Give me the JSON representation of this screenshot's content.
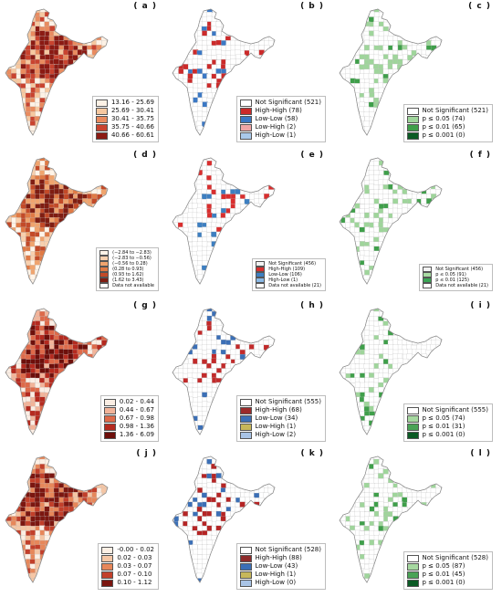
{
  "panels": [
    {
      "label": "( a )",
      "kind": "choropleth",
      "palette": [
        "#fdf2e6",
        "#f6c8a0",
        "#e98b5f",
        "#c9432f",
        "#8b1a13"
      ],
      "legend": [
        "13.16 - 25.69",
        "25.69 - 30.41",
        "30.41 - 35.75",
        "35.75 - 40.66",
        "40.66 - 60.61"
      ]
    },
    {
      "label": "( b )",
      "kind": "lisa",
      "hh": "#cc2a2a",
      "ll": "#3b78c4",
      "legend": [
        {
          "text": "Not Significant (521)",
          "color": "#ffffff"
        },
        {
          "text": "High-High (78)",
          "color": "#cc2a2a"
        },
        {
          "text": "Low-Low (58)",
          "color": "#3b78c4"
        },
        {
          "text": "Low-High (2)",
          "color": "#f0a6a6"
        },
        {
          "text": "High-Low (1)",
          "color": "#a9c9ea"
        }
      ]
    },
    {
      "label": "( c )",
      "kind": "signif",
      "legend": [
        {
          "text": "Not Significant (521)",
          "color": "#ffffff"
        },
        {
          "text": "p ≤ 0.05 (74)",
          "color": "#9fd59b"
        },
        {
          "text": "p ≤ 0.01 (65)",
          "color": "#3f9f4a"
        },
        {
          "text": "p ≤ 0.001 (0)",
          "color": "#0b5a24"
        }
      ]
    },
    {
      "label": "( d )",
      "kind": "choropleth",
      "small": true,
      "palette": [
        "#fff4e8",
        "#f8d0ae",
        "#f0a46e",
        "#e07a45",
        "#c34a28",
        "#7f1d12"
      ],
      "legend": [
        "(−2.84 to −2.83)",
        "(−2.83 to −0.56)",
        "(−0.56 to 0.28)",
        "(0.28 to 0.93)",
        "(0.93 to 1.62)",
        "(1.62 to 3.43)",
        "Data not available"
      ]
    },
    {
      "label": "( e )",
      "kind": "lisa",
      "small": true,
      "hh": "#d92e2e",
      "ll": "#3d7fc1",
      "legend": [
        {
          "text": "Not Significant (456)",
          "color": "#f2f2f2"
        },
        {
          "text": "High-High (109)",
          "color": "#d92e2e"
        },
        {
          "text": "Low-Low (106)",
          "color": "#3d7fc1"
        },
        {
          "text": "High-Low (1)",
          "color": "#8ab9e6"
        },
        {
          "text": "Data not available (21)",
          "color": "#ffffff"
        }
      ]
    },
    {
      "label": "( f )",
      "kind": "signif",
      "small": true,
      "legend": [
        {
          "text": "Not Significant (456)",
          "color": "#f2f2f2"
        },
        {
          "text": "p ≤ 0.05 (91)",
          "color": "#a9dba3"
        },
        {
          "text": "p ≤ 0.01 (125)",
          "color": "#3aa655"
        },
        {
          "text": "Data not available (21)",
          "color": "#ffffff"
        }
      ]
    },
    {
      "label": "( g )",
      "kind": "choropleth",
      "palette": [
        "#fbeee4",
        "#f2b49a",
        "#de6a4a",
        "#b52a1f",
        "#6d0f0b"
      ],
      "legend": [
        "0.02 - 0.44",
        "0.44 - 0.67",
        "0.67 - 0.98",
        "0.98 - 1.36",
        "1.36 - 6.09"
      ]
    },
    {
      "label": "( h )",
      "kind": "lisa",
      "hh": "#c22a2a",
      "ll": "#3b6fb6",
      "legend": [
        {
          "text": "Not Significant (555)",
          "color": "#ffffff"
        },
        {
          "text": "High-High (68)",
          "color": "#9b2a2a"
        },
        {
          "text": "Low-Low (34)",
          "color": "#3b6fb6"
        },
        {
          "text": "Low-High (1)",
          "color": "#c7b75a"
        },
        {
          "text": "High-Low (2)",
          "color": "#a9c4e6"
        }
      ]
    },
    {
      "label": "( i )",
      "kind": "signif",
      "legend": [
        {
          "text": "Not Significant (555)",
          "color": "#ffffff"
        },
        {
          "text": "p ≤ 0.05 (74)",
          "color": "#a6d8a0"
        },
        {
          "text": "p ≤ 0.01 (31)",
          "color": "#4aa356"
        },
        {
          "text": "p ≤ 0.001 (0)",
          "color": "#0b5a24"
        }
      ]
    },
    {
      "label": "( j )",
      "kind": "choropleth",
      "palette": [
        "#fcefe4",
        "#f5c6a5",
        "#e7875a",
        "#c23f2a",
        "#7b1610"
      ],
      "legend": [
        "-0.00 - 0.02",
        "0.02 - 0.03",
        "0.03 - 0.07",
        "0.07 - 0.10",
        "0.10 - 1.12"
      ]
    },
    {
      "label": "( k )",
      "kind": "lisa",
      "hh": "#b52525",
      "ll": "#3b6fb6",
      "legend": [
        {
          "text": "Not Significant (528)",
          "color": "#ffffff"
        },
        {
          "text": "High-High (88)",
          "color": "#8e2b2b"
        },
        {
          "text": "Low-Low (43)",
          "color": "#3b6fb6"
        },
        {
          "text": "Low-High (1)",
          "color": "#c7b75a"
        },
        {
          "text": "High-Low (0)",
          "color": "#a9c4e6"
        }
      ]
    },
    {
      "label": "( l )",
      "kind": "signif",
      "legend": [
        {
          "text": "Not Significant (528)",
          "color": "#ffffff"
        },
        {
          "text": "p ≤ 0.05 (87)",
          "color": "#a6d8a0"
        },
        {
          "text": "p ≤ 0.01 (45)",
          "color": "#4aa356"
        },
        {
          "text": "p ≤ 0.001 (0)",
          "color": "#0b5a24"
        }
      ]
    }
  ]
}
